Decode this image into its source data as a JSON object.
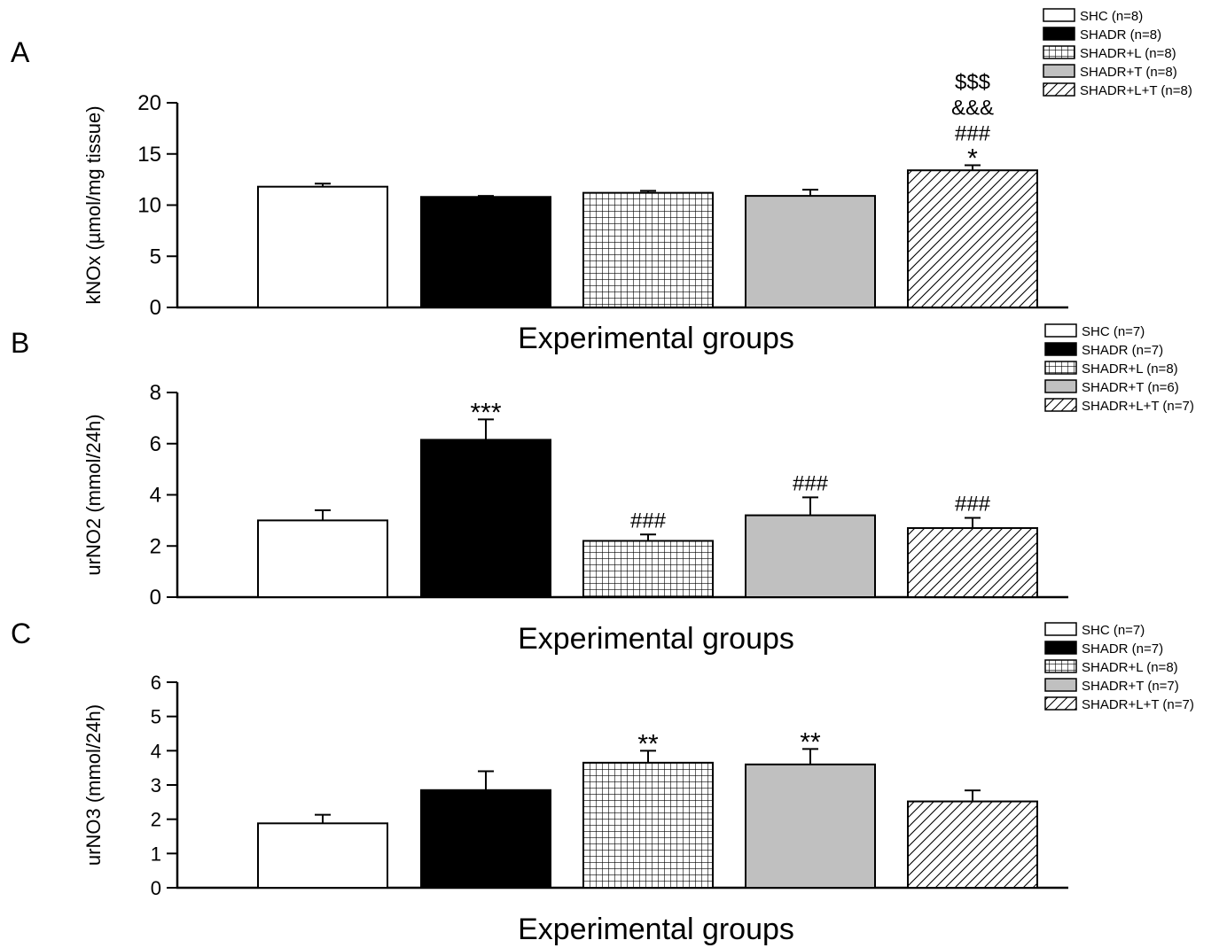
{
  "chart_data": [
    {
      "type": "bar",
      "panel_label": "A",
      "xlabel": "Experimental groups",
      "ylabel": "kNOx (µmol/mg tissue)",
      "ylim": [
        0,
        20
      ],
      "yticks": [
        0,
        5,
        10,
        15,
        20
      ],
      "categories": [
        "SHC",
        "SHADR",
        "SHADR+L",
        "SHADR+T",
        "SHADR+L+T"
      ],
      "legend": [
        "SHC (n=8)",
        "SHADR (n=8)",
        "SHADR+L (n=8)",
        "SHADR+T (n=8)",
        "SHADR+L+T (n=8)"
      ],
      "legend_position": "top-right",
      "values": [
        11.8,
        10.8,
        11.2,
        10.9,
        13.4
      ],
      "errors": [
        0.3,
        0.1,
        0.2,
        0.6,
        0.5
      ],
      "annotations": [
        [],
        [],
        [],
        [],
        [
          "$$$",
          "&&&",
          "###",
          "*"
        ]
      ]
    },
    {
      "type": "bar",
      "panel_label": "B",
      "xlabel": "Experimental groups",
      "ylabel": "urNO2 (mmol/24h)",
      "ylim": [
        0,
        8
      ],
      "yticks": [
        0,
        2,
        4,
        6,
        8
      ],
      "categories": [
        "SHC",
        "SHADR",
        "SHADR+L",
        "SHADR+T",
        "SHADR+L+T"
      ],
      "legend": [
        "SHC (n=7)",
        "SHADR (n=7)",
        "SHADR+L (n=8)",
        "SHADR+T (n=6)",
        "SHADR+L+T (n=7)"
      ],
      "legend_position": "top-right",
      "values": [
        3.0,
        6.15,
        2.2,
        3.2,
        2.7
      ],
      "errors": [
        0.4,
        0.8,
        0.25,
        0.7,
        0.4
      ],
      "annotations": [
        [],
        [
          "***"
        ],
        [
          "###"
        ],
        [
          "###"
        ],
        [
          "###"
        ]
      ]
    },
    {
      "type": "bar",
      "panel_label": "C",
      "xlabel": "Experimental groups",
      "ylabel": "urNO3 (mmol/24h)",
      "ylim": [
        0,
        6
      ],
      "yticks": [
        0,
        1,
        2,
        3,
        4,
        5,
        6
      ],
      "categories": [
        "SHC",
        "SHADR",
        "SHADR+L",
        "SHADR+T",
        "SHADR+L+T"
      ],
      "legend": [
        "SHC (n=7)",
        "SHADR (n=7)",
        "SHADR+L (n=8)",
        "SHADR+T (n=7)",
        "SHADR+L+T (n=7)"
      ],
      "legend_position": "top-right",
      "values": [
        1.88,
        2.85,
        3.65,
        3.6,
        2.52
      ],
      "errors": [
        0.25,
        0.55,
        0.35,
        0.45,
        0.32
      ],
      "annotations": [
        [],
        [],
        [
          "**"
        ],
        [
          "**"
        ],
        []
      ]
    }
  ],
  "styles": {
    "fills": [
      "white",
      "black",
      "grid-hatch",
      "gray",
      "diagonal-hatch"
    ],
    "gray_color": "#c0c0c0",
    "ink_color": "#000000"
  }
}
